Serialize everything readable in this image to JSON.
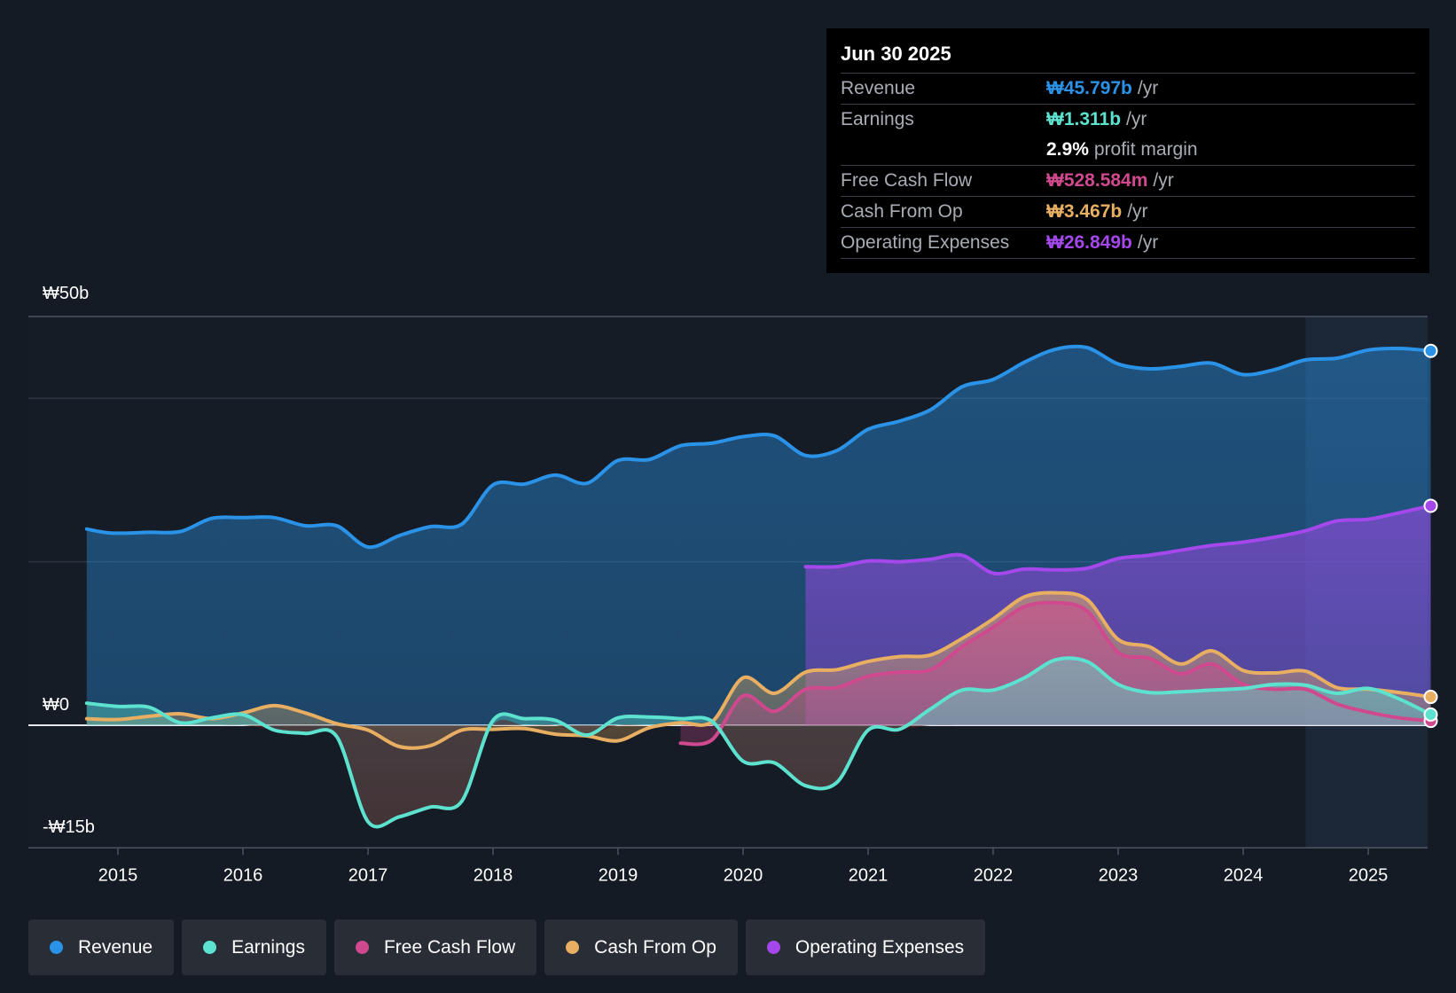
{
  "chart_data": {
    "type": "line",
    "currency": "₩",
    "y_unit": "billions",
    "ylim": [
      -15,
      50
    ],
    "y_tick_labels": [
      "₩50b",
      "₩0",
      "-₩15b"
    ],
    "x_tick_labels": [
      "2015",
      "2016",
      "2017",
      "2018",
      "2019",
      "2020",
      "2021",
      "2022",
      "2023",
      "2024",
      "2025"
    ],
    "series": [
      {
        "name": "Revenue",
        "color": "#2a93e8",
        "points": [
          [
            2014.75,
            24
          ],
          [
            2014.95,
            23.5
          ],
          [
            2015.25,
            23.6
          ],
          [
            2015.5,
            23.7
          ],
          [
            2015.75,
            25.3
          ],
          [
            2016.0,
            25.4
          ],
          [
            2016.25,
            25.4
          ],
          [
            2016.5,
            24.4
          ],
          [
            2016.75,
            24.4
          ],
          [
            2017.0,
            21.8
          ],
          [
            2017.25,
            23.2
          ],
          [
            2017.5,
            24.3
          ],
          [
            2017.75,
            24.6
          ],
          [
            2018.0,
            29.4
          ],
          [
            2018.25,
            29.5
          ],
          [
            2018.5,
            30.6
          ],
          [
            2018.75,
            29.6
          ],
          [
            2019.0,
            32.4
          ],
          [
            2019.25,
            32.5
          ],
          [
            2019.5,
            34.2
          ],
          [
            2019.75,
            34.5
          ],
          [
            2020.0,
            35.3
          ],
          [
            2020.25,
            35.4
          ],
          [
            2020.5,
            33.0
          ],
          [
            2020.75,
            33.6
          ],
          [
            2021.0,
            36.2
          ],
          [
            2021.25,
            37.2
          ],
          [
            2021.5,
            38.6
          ],
          [
            2021.75,
            41.4
          ],
          [
            2022.0,
            42.3
          ],
          [
            2022.25,
            44.4
          ],
          [
            2022.5,
            46.0
          ],
          [
            2022.75,
            46.2
          ],
          [
            2023.0,
            44.2
          ],
          [
            2023.25,
            43.6
          ],
          [
            2023.5,
            43.9
          ],
          [
            2023.75,
            44.3
          ],
          [
            2024.0,
            42.9
          ],
          [
            2024.25,
            43.5
          ],
          [
            2024.5,
            44.7
          ],
          [
            2024.75,
            44.9
          ],
          [
            2025.0,
            45.9
          ],
          [
            2025.25,
            46.1
          ],
          [
            2025.5,
            45.8
          ]
        ]
      },
      {
        "name": "Earnings",
        "color": "#5ce2cf",
        "points": [
          [
            2014.75,
            2.7
          ],
          [
            2015.0,
            2.3
          ],
          [
            2015.25,
            2.2
          ],
          [
            2015.5,
            0.3
          ],
          [
            2015.75,
            0.9
          ],
          [
            2016.0,
            1.3
          ],
          [
            2016.25,
            -0.6
          ],
          [
            2016.5,
            -1.0
          ],
          [
            2016.75,
            -1.4
          ],
          [
            2017.0,
            -11.8
          ],
          [
            2017.25,
            -11.2
          ],
          [
            2017.5,
            -10.0
          ],
          [
            2017.75,
            -9.3
          ],
          [
            2018.0,
            0.6
          ],
          [
            2018.25,
            0.8
          ],
          [
            2018.5,
            0.6
          ],
          [
            2018.75,
            -1.2
          ],
          [
            2019.0,
            0.9
          ],
          [
            2019.25,
            1.0
          ],
          [
            2019.5,
            0.8
          ],
          [
            2019.75,
            0.5
          ],
          [
            2020.0,
            -4.4
          ],
          [
            2020.25,
            -4.6
          ],
          [
            2020.5,
            -7.4
          ],
          [
            2020.75,
            -7.0
          ],
          [
            2021.0,
            -0.6
          ],
          [
            2021.25,
            -0.5
          ],
          [
            2021.5,
            2.0
          ],
          [
            2021.75,
            4.3
          ],
          [
            2022.0,
            4.3
          ],
          [
            2022.25,
            5.8
          ],
          [
            2022.5,
            8.0
          ],
          [
            2022.75,
            7.8
          ],
          [
            2023.0,
            5.0
          ],
          [
            2023.25,
            4.0
          ],
          [
            2023.5,
            4.1
          ],
          [
            2023.75,
            4.3
          ],
          [
            2024.0,
            4.5
          ],
          [
            2024.25,
            5.0
          ],
          [
            2024.5,
            4.9
          ],
          [
            2024.75,
            3.9
          ],
          [
            2025.0,
            4.5
          ],
          [
            2025.25,
            3.2
          ],
          [
            2025.5,
            1.311
          ]
        ]
      },
      {
        "name": "Free Cash Flow",
        "color": "#d0498f",
        "points": [
          [
            2019.5,
            -2.2
          ],
          [
            2019.75,
            -1.8
          ],
          [
            2020.0,
            3.6
          ],
          [
            2020.25,
            1.7
          ],
          [
            2020.5,
            4.4
          ],
          [
            2020.75,
            4.6
          ],
          [
            2021.0,
            6.0
          ],
          [
            2021.25,
            6.5
          ],
          [
            2021.5,
            6.8
          ],
          [
            2021.75,
            9.6
          ],
          [
            2022.0,
            12.0
          ],
          [
            2022.25,
            14.5
          ],
          [
            2022.5,
            15.0
          ],
          [
            2022.75,
            14.0
          ],
          [
            2023.0,
            8.9
          ],
          [
            2023.25,
            8.2
          ],
          [
            2023.5,
            6.3
          ],
          [
            2023.75,
            7.5
          ],
          [
            2024.0,
            5.0
          ],
          [
            2024.25,
            4.4
          ],
          [
            2024.5,
            4.4
          ],
          [
            2024.75,
            2.6
          ],
          [
            2025.0,
            1.6
          ],
          [
            2025.25,
            0.9
          ],
          [
            2025.5,
            0.529
          ]
        ]
      },
      {
        "name": "Cash From Op",
        "color": "#e8af63",
        "points": [
          [
            2014.75,
            0.8
          ],
          [
            2015.0,
            0.7
          ],
          [
            2015.25,
            1.1
          ],
          [
            2015.5,
            1.4
          ],
          [
            2015.75,
            0.8
          ],
          [
            2016.0,
            1.5
          ],
          [
            2016.25,
            2.4
          ],
          [
            2016.5,
            1.5
          ],
          [
            2016.75,
            0.2
          ],
          [
            2017.0,
            -0.6
          ],
          [
            2017.25,
            -2.6
          ],
          [
            2017.5,
            -2.5
          ],
          [
            2017.75,
            -0.6
          ],
          [
            2018.0,
            -0.5
          ],
          [
            2018.25,
            -0.4
          ],
          [
            2018.5,
            -1.1
          ],
          [
            2018.75,
            -1.3
          ],
          [
            2019.0,
            -1.9
          ],
          [
            2019.25,
            -0.3
          ],
          [
            2019.5,
            0.3
          ],
          [
            2019.75,
            0.4
          ],
          [
            2020.0,
            5.8
          ],
          [
            2020.25,
            3.9
          ],
          [
            2020.5,
            6.5
          ],
          [
            2020.75,
            6.8
          ],
          [
            2021.0,
            7.8
          ],
          [
            2021.25,
            8.4
          ],
          [
            2021.5,
            8.6
          ],
          [
            2021.75,
            10.6
          ],
          [
            2022.0,
            13.0
          ],
          [
            2022.25,
            15.7
          ],
          [
            2022.5,
            16.2
          ],
          [
            2022.75,
            15.4
          ],
          [
            2023.0,
            10.5
          ],
          [
            2023.25,
            9.6
          ],
          [
            2023.5,
            7.5
          ],
          [
            2023.75,
            9.1
          ],
          [
            2024.0,
            6.7
          ],
          [
            2024.25,
            6.4
          ],
          [
            2024.5,
            6.6
          ],
          [
            2024.75,
            4.6
          ],
          [
            2025.0,
            4.4
          ],
          [
            2025.25,
            4.0
          ],
          [
            2025.5,
            3.467
          ]
        ]
      },
      {
        "name": "Operating Expenses",
        "color": "#a448ec",
        "points": [
          [
            2020.5,
            19.4
          ],
          [
            2020.75,
            19.4
          ],
          [
            2021.0,
            20.1
          ],
          [
            2021.25,
            20.0
          ],
          [
            2021.5,
            20.3
          ],
          [
            2021.75,
            20.8
          ],
          [
            2022.0,
            18.6
          ],
          [
            2022.25,
            19.1
          ],
          [
            2022.5,
            19.0
          ],
          [
            2022.75,
            19.2
          ],
          [
            2023.0,
            20.4
          ],
          [
            2023.25,
            20.8
          ],
          [
            2023.5,
            21.4
          ],
          [
            2023.75,
            22.0
          ],
          [
            2024.0,
            22.4
          ],
          [
            2024.25,
            23.0
          ],
          [
            2024.5,
            23.8
          ],
          [
            2024.75,
            25.0
          ],
          [
            2025.0,
            25.2
          ],
          [
            2025.25,
            26.0
          ],
          [
            2025.5,
            26.849
          ]
        ]
      }
    ],
    "highlight_start": 2024.5,
    "highlight_end": 2025.5,
    "tooltip": {
      "date": "Jun 30 2025",
      "rows": [
        {
          "label": "Revenue",
          "value": "₩45.797b",
          "unit": "/yr",
          "color": "#2a93e8"
        },
        {
          "label": "Earnings",
          "value": "₩1.311b",
          "unit": "/yr",
          "color": "#5ce2cf"
        },
        {
          "label": "",
          "value": "2.9%",
          "unit": "profit margin",
          "color": "#ffffff"
        },
        {
          "label": "Free Cash Flow",
          "value": "₩528.584m",
          "unit": "/yr",
          "color": "#d0498f"
        },
        {
          "label": "Cash From Op",
          "value": "₩3.467b",
          "unit": "/yr",
          "color": "#e8af63"
        },
        {
          "label": "Operating Expenses",
          "value": "₩26.849b",
          "unit": "/yr",
          "color": "#a448ec"
        }
      ]
    },
    "legend": [
      {
        "label": "Revenue",
        "color": "#2a93e8"
      },
      {
        "label": "Earnings",
        "color": "#5ce2cf"
      },
      {
        "label": "Free Cash Flow",
        "color": "#d0498f"
      },
      {
        "label": "Cash From Op",
        "color": "#e8af63"
      },
      {
        "label": "Operating Expenses",
        "color": "#a448ec"
      }
    ]
  }
}
